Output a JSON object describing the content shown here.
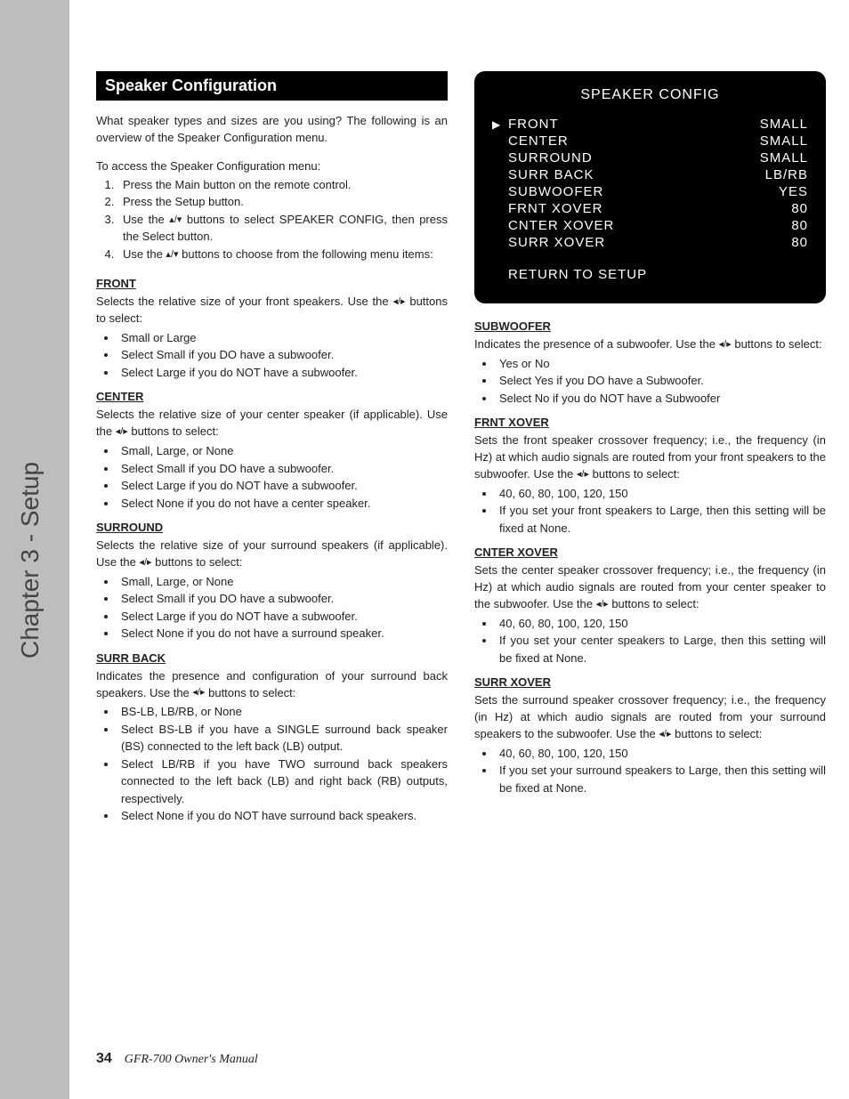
{
  "chapter_tab": "Chapter 3 - Setup",
  "section_title": "Speaker Configuration",
  "intro": "What speaker types and sizes are you using? The following is an overview of the Speaker Configuration menu.",
  "access_lead": "To access the Speaker Configuration menu:",
  "steps": {
    "s1": "Press the Main button on the remote control.",
    "s2": "Press the Setup button.",
    "s3a": "Use the ",
    "s3b": " buttons to select SPEAKER CONFIG, then press the Select button.",
    "s4a": "Use the ",
    "s4b": " buttons to choose from the following menu items:"
  },
  "arrows_ud": "▴/▾",
  "arrows_lr": "◂/▸",
  "front": {
    "head": "FRONT",
    "body_a": "Selects the relative size of your front speakers. Use the ",
    "body_b": " buttons to select:",
    "o1": "Small or Large",
    "o2": "Select Small if you DO have a subwoofer.",
    "o3": "Select Large if you do NOT have a subwoofer."
  },
  "center": {
    "head": "CENTER",
    "body_a": "Selects the relative size of your center speaker (if applicable). Use the ",
    "body_b": " buttons to select:",
    "o1": "Small, Large, or None",
    "o2": "Select Small if you DO have a subwoofer.",
    "o3": "Select Large if you do NOT have a subwoofer.",
    "o4": "Select None if you do not have a center speaker."
  },
  "surround": {
    "head": "SURROUND",
    "body_a": "Selects the relative size of your surround speakers (if applicable). Use the ",
    "body_b": " buttons to select:",
    "o1": "Small, Large, or None",
    "o2": "Select Small if you DO have a subwoofer.",
    "o3": "Select Large if you do NOT have a subwoofer.",
    "o4": "Select None if you do not have a surround speaker."
  },
  "surrback": {
    "head": "SURR BACK",
    "body_a": "Indicates the presence and configuration of your surround back speakers. Use the ",
    "body_b": " buttons to select:",
    "o1": "BS-LB, LB/RB, or None",
    "o2": "Select BS-LB if you have a SINGLE surround  back speaker (BS) connected to the left back (LB) output.",
    "o3": "Select LB/RB if you have TWO surround back speakers connected to the left back (LB) and right back (RB) outputs, respectively.",
    "o4": "Select None if you do NOT have surround back speakers."
  },
  "subwoofer": {
    "head": "SUBWOOFER",
    "body_a": "Indicates the presence of a subwoofer. Use the ",
    "body_b": " buttons to select:",
    "o1": "Yes or No",
    "o2": "Select Yes if you DO have a Subwoofer.",
    "o3": "Select No if you do NOT have a Subwoofer"
  },
  "frntxover": {
    "head": "FRNT XOVER",
    "body_a": "Sets the front speaker crossover frequency; i.e., the frequency (in Hz) at which audio signals are routed from your front speakers to the subwoofer. Use the ",
    "body_b": " buttons to select:",
    "o1": "40, 60, 80, 100, 120, 150",
    "o2": "If you set your front speakers to Large, then this setting will be fixed at None."
  },
  "cnterxover": {
    "head": "CNTER XOVER",
    "body_a": "Sets the center speaker crossover frequency; i.e., the frequency (in Hz) at which audio signals are routed from your center speaker to the subwoofer. Use the ",
    "body_b": " buttons to select:",
    "o1": "40, 60, 80, 100, 120, 150",
    "o2": "If you set your center speakers to Large, then this setting will be fixed at None."
  },
  "surrxover": {
    "head": "SURR XOVER",
    "body_a": "Sets the surround speaker crossover frequency; i.e., the frequency (in Hz) at which audio signals are routed from your surround speakers to the subwoofer. Use the ",
    "body_b": " buttons to select:",
    "o1": "40, 60, 80, 100, 120, 150",
    "o2": "If you set your surround speakers to Large, then this setting will be fixed at None."
  },
  "osd": {
    "title": "SPEAKER CONFIG",
    "rows": {
      "r0l": "FRONT",
      "r0v": "SMALL",
      "r1l": "CENTER",
      "r1v": "SMALL",
      "r2l": "SURROUND",
      "r2v": "SMALL",
      "r3l": "SURR BACK",
      "r3v": "LB/RB",
      "r4l": "SUBWOOFER",
      "r4v": "YES",
      "r5l": "FRNT XOVER",
      "r5v": "80",
      "r6l": "CNTER XOVER",
      "r6v": "80",
      "r7l": "SURR XOVER",
      "r7v": "80"
    },
    "return": "RETURN TO SETUP",
    "cursor": "▶"
  },
  "footer": {
    "page": "34",
    "manual": "GFR-700 Owner's Manual"
  }
}
